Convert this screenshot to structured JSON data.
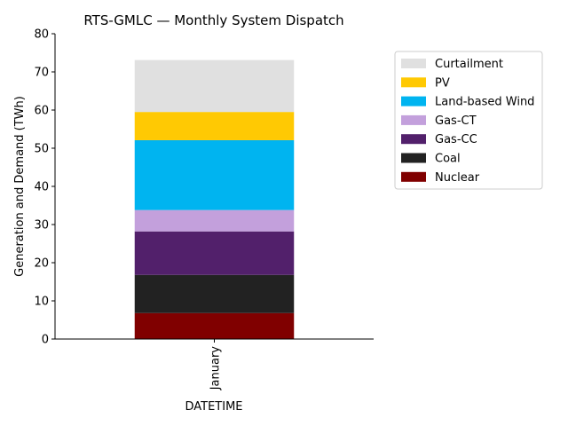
{
  "chart_data": {
    "type": "bar",
    "stacked": true,
    "title": "RTS-GMLC — Monthly System Dispatch",
    "xlabel": "DATETIME",
    "ylabel": "Generation and Demand (TWh)",
    "categories": [
      "January"
    ],
    "ylim": [
      0,
      80
    ],
    "yticks": [
      0,
      10,
      20,
      30,
      40,
      50,
      60,
      70,
      80
    ],
    "grid": false,
    "legend_position": "outside-right",
    "series": [
      {
        "name": "Nuclear",
        "color": "#800000",
        "values": [
          6.8
        ]
      },
      {
        "name": "Coal",
        "color": "#222222",
        "values": [
          10.0
        ]
      },
      {
        "name": "Gas-CC",
        "color": "#52206b",
        "values": [
          11.4
        ]
      },
      {
        "name": "Gas-CT",
        "color": "#c3a0dc",
        "values": [
          5.6
        ]
      },
      {
        "name": "Land-based Wind",
        "color": "#00b4f0",
        "values": [
          18.3
        ]
      },
      {
        "name": "PV",
        "color": "#ffc903",
        "values": [
          7.4
        ]
      },
      {
        "name": "Curtailment",
        "color": "#e0e0e0",
        "values": [
          13.6
        ]
      }
    ]
  }
}
